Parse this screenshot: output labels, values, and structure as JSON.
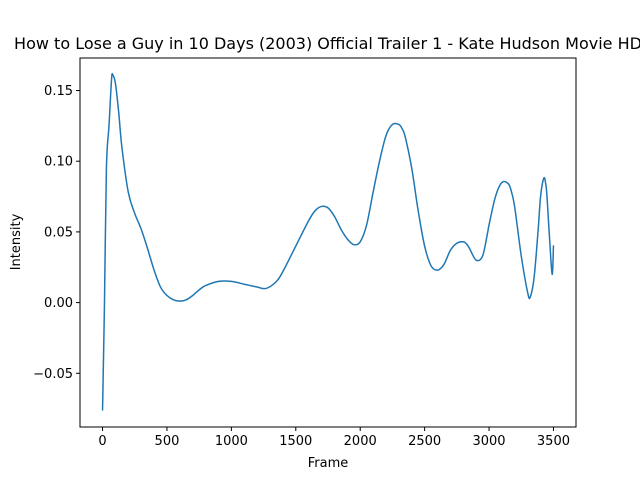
{
  "chart_data": {
    "type": "line",
    "title": "How to Lose a Guy in 10 Days (2003) Official Trailer 1 - Kate Hudson Movie HD",
    "xlabel": "Frame",
    "ylabel": "Intensity",
    "xlim": [
      -175,
      3675
    ],
    "ylim": [
      -0.088,
      0.173
    ],
    "xticks": [
      0,
      500,
      1000,
      1500,
      2000,
      2500,
      3000,
      3500
    ],
    "yticks": [
      -0.05,
      0.0,
      0.05,
      0.1,
      0.15
    ],
    "xtick_labels": [
      "0",
      "500",
      "1000",
      "1500",
      "2000",
      "2500",
      "3000",
      "3500"
    ],
    "ytick_labels": [
      "−0.05",
      "0.00",
      "0.05",
      "0.10",
      "0.15"
    ],
    "grid": false,
    "legend": false,
    "color": "#1f77b4",
    "series": [
      {
        "x": [
          0,
          15,
          30,
          50,
          70,
          80,
          100,
          125,
          150,
          200,
          250,
          300,
          350,
          400,
          450,
          500,
          550,
          600,
          650,
          700,
          750,
          800,
          900,
          1000,
          1100,
          1200,
          1270,
          1350,
          1400,
          1500,
          1600,
          1650,
          1700,
          1750,
          1800,
          1850,
          1900,
          1950,
          2000,
          2050,
          2100,
          2150,
          2200,
          2250,
          2300,
          2325,
          2350,
          2400,
          2450,
          2500,
          2550,
          2600,
          2650,
          2700,
          2750,
          2800,
          2830,
          2850,
          2900,
          2950,
          2990,
          3000,
          3050,
          3100,
          3150,
          3175,
          3200,
          3250,
          3300,
          3320,
          3350,
          3380,
          3400,
          3425,
          3440,
          3450,
          3470,
          3490,
          3500
        ],
        "y": [
          -0.076,
          0.0,
          0.095,
          0.125,
          0.158,
          0.161,
          0.155,
          0.135,
          0.11,
          0.078,
          0.063,
          0.052,
          0.038,
          0.023,
          0.011,
          0.005,
          0.002,
          0.001,
          0.002,
          0.005,
          0.009,
          0.012,
          0.015,
          0.015,
          0.013,
          0.011,
          0.01,
          0.015,
          0.022,
          0.04,
          0.058,
          0.065,
          0.068,
          0.067,
          0.061,
          0.052,
          0.045,
          0.041,
          0.043,
          0.055,
          0.078,
          0.1,
          0.118,
          0.126,
          0.126,
          0.123,
          0.117,
          0.095,
          0.065,
          0.04,
          0.026,
          0.023,
          0.027,
          0.037,
          0.042,
          0.043,
          0.041,
          0.038,
          0.03,
          0.033,
          0.05,
          0.055,
          0.075,
          0.085,
          0.084,
          0.078,
          0.067,
          0.033,
          0.007,
          0.004,
          0.018,
          0.05,
          0.075,
          0.088,
          0.084,
          0.075,
          0.045,
          0.02,
          0.04
        ]
      }
    ]
  }
}
